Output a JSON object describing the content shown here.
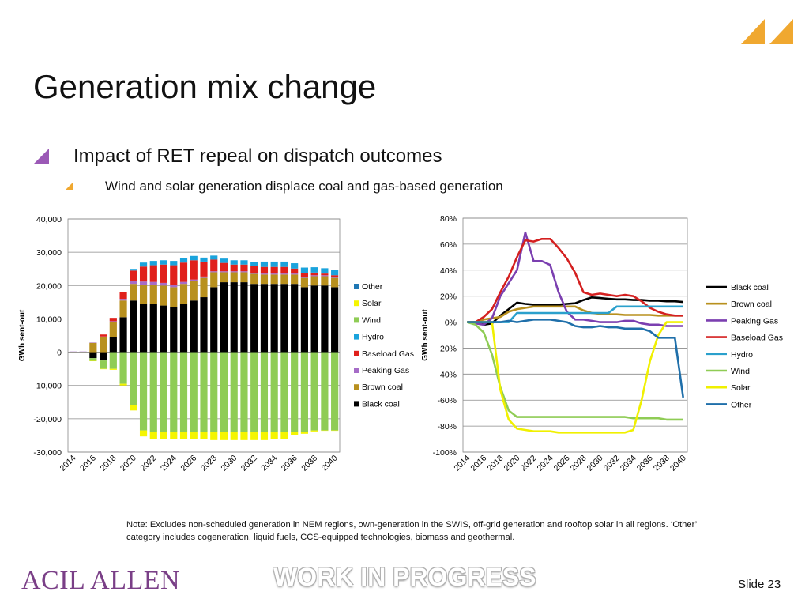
{
  "slide": {
    "title": "Generation mix change",
    "bullet1": "Impact of RET repeal on dispatch outcomes",
    "bullet2": "Wind and solar generation displace coal and gas-based generation",
    "note": "Note: Excludes non-scheduled generation in NEM regions, own-generation in the SWIS, off-grid generation and rooftop solar in all regions. ‘Other’ category includes cogeneration, liquid fuels, CCS-equipped technologies, biomass and geothermal.",
    "brand": "ACIL ALLEN",
    "watermark": "WORK IN PROGRESS",
    "slide_number": "Slide 23",
    "accent_purple": "#9b59b6",
    "accent_orange": "#f0a830"
  },
  "chart_data": [
    {
      "type": "bar",
      "stacked": true,
      "ylabel": "GWh sent-out",
      "ylim": [
        -30000,
        40000
      ],
      "yticks": [
        40000,
        30000,
        20000,
        10000,
        0,
        -10000,
        -20000,
        -30000
      ],
      "ytick_labels": [
        "40,000",
        "30,000",
        "20,000",
        "10,000",
        "0",
        "-10,000",
        "-20,000",
        "-30,000"
      ],
      "x_tick_labels": [
        "2014",
        "2016",
        "2018",
        "2020",
        "2022",
        "2024",
        "2026",
        "2028",
        "2030",
        "2032",
        "2034",
        "2036",
        "2038",
        "2040"
      ],
      "categories": [
        2014,
        2015,
        2016,
        2017,
        2018,
        2019,
        2020,
        2021,
        2022,
        2023,
        2024,
        2025,
        2026,
        2027,
        2028,
        2029,
        2030,
        2031,
        2032,
        2033,
        2034,
        2035,
        2036,
        2037,
        2038,
        2039,
        2040
      ],
      "legend_position": "right",
      "series": [
        {
          "name": "Other",
          "color": "#1f77b4",
          "values": [
            0,
            0,
            0,
            0,
            0,
            0,
            0,
            0,
            0,
            0,
            0,
            0,
            0,
            0,
            0,
            0,
            0,
            0,
            0,
            0,
            0,
            0,
            0,
            0,
            0,
            0,
            0
          ]
        },
        {
          "name": "Solar",
          "color": "#f5f500",
          "values": [
            0,
            0,
            -100,
            -100,
            -300,
            -500,
            -1500,
            -1800,
            -2000,
            -2000,
            -2000,
            -2000,
            -2200,
            -2200,
            -2400,
            -2400,
            -2400,
            -2400,
            -2400,
            -2400,
            -2200,
            -2200,
            -1000,
            -500,
            -300,
            -100,
            -100
          ]
        },
        {
          "name": "Wind",
          "color": "#8fcc55",
          "values": [
            -200,
            -200,
            -800,
            -2500,
            -5000,
            -9500,
            -16000,
            -23500,
            -24000,
            -24000,
            -24000,
            -24000,
            -24000,
            -24000,
            -24000,
            -24000,
            -24000,
            -24000,
            -24000,
            -24000,
            -24000,
            -24000,
            -24000,
            -24000,
            -23500,
            -23500,
            -23500
          ]
        },
        {
          "name": "Hydro",
          "color": "#1aa3dc",
          "values": [
            0,
            0,
            0,
            0,
            0,
            0,
            500,
            1200,
            1300,
            1300,
            1300,
            1300,
            1300,
            1200,
            1200,
            1300,
            1300,
            1300,
            1300,
            1600,
            1600,
            1600,
            1600,
            1600,
            1600,
            1600,
            1600
          ]
        },
        {
          "name": "Baseload Gas",
          "color": "#e0201b",
          "values": [
            0,
            0,
            0,
            600,
            1000,
            2000,
            3000,
            4500,
            5000,
            5500,
            5800,
            5800,
            5800,
            4500,
            3500,
            2500,
            2000,
            2000,
            2000,
            2000,
            2000,
            2000,
            1500,
            1200,
            800,
            500,
            500
          ]
        },
        {
          "name": "Peaking Gas",
          "color": "#a66cc7",
          "values": [
            200,
            200,
            100,
            200,
            300,
            500,
            1000,
            900,
            800,
            800,
            800,
            600,
            500,
            400,
            300,
            300,
            300,
            300,
            300,
            300,
            300,
            300,
            300,
            300,
            300,
            300,
            300
          ]
        },
        {
          "name": "Brown coal",
          "color": "#b8901e",
          "values": [
            0,
            0,
            2800,
            4500,
            4500,
            5000,
            5000,
            5800,
            5800,
            6000,
            6000,
            6000,
            5800,
            5800,
            4500,
            3000,
            3000,
            3000,
            3000,
            2800,
            2800,
            2800,
            2800,
            2800,
            2800,
            2800,
            2800
          ]
        },
        {
          "name": "Black coal",
          "color": "#000000",
          "values": [
            0,
            0,
            -1800,
            -2500,
            4500,
            10500,
            15500,
            14500,
            14500,
            14000,
            13500,
            14500,
            15500,
            16500,
            19500,
            21000,
            21000,
            21000,
            20500,
            20500,
            20500,
            20500,
            20500,
            19500,
            20000,
            20000,
            19500
          ]
        }
      ]
    },
    {
      "type": "line",
      "ylabel": "GWh sent-out",
      "ylim": [
        -100,
        80
      ],
      "yticks": [
        80,
        60,
        40,
        20,
        0,
        -20,
        -40,
        -60,
        -80,
        -100
      ],
      "ytick_labels": [
        "80%",
        "60%",
        "40%",
        "20%",
        "0%",
        "-20%",
        "-40%",
        "-60%",
        "-80%",
        "-100%"
      ],
      "x_tick_labels": [
        "2014",
        "2016",
        "2018",
        "2020",
        "2022",
        "2024",
        "2026",
        "2028",
        "2030",
        "2032",
        "2034",
        "2036",
        "2038",
        "2040"
      ],
      "x": [
        2014,
        2015,
        2016,
        2017,
        2018,
        2019,
        2020,
        2021,
        2022,
        2023,
        2024,
        2025,
        2026,
        2027,
        2028,
        2029,
        2030,
        2031,
        2032,
        2033,
        2034,
        2035,
        2036,
        2037,
        2038,
        2039,
        2040
      ],
      "legend_position": "right",
      "series": [
        {
          "name": "Black coal",
          "color": "#000000",
          "values": [
            0,
            0,
            -2,
            -1,
            5,
            10,
            15,
            14,
            13.5,
            13,
            13,
            13.5,
            14,
            14.5,
            17,
            19,
            18.5,
            18,
            17.5,
            17.5,
            17,
            17,
            16.5,
            16.5,
            16,
            16,
            15.5
          ]
        },
        {
          "name": "Brown coal",
          "color": "#b8901e",
          "values": [
            0,
            0,
            2,
            3,
            4,
            8,
            10,
            11,
            12,
            12,
            12,
            12,
            12,
            12,
            9,
            7,
            6.5,
            6,
            6,
            5.5,
            5.5,
            5.5,
            5.5,
            5,
            5,
            5,
            5
          ]
        },
        {
          "name": "Peaking Gas",
          "color": "#7b3fb0",
          "values": [
            0,
            -1,
            -2,
            3,
            20,
            30,
            40,
            69,
            47,
            47,
            44,
            23,
            8,
            2,
            2,
            1,
            0,
            0,
            0,
            1,
            1,
            -1,
            -2,
            -2,
            -3,
            -3,
            -3
          ]
        },
        {
          "name": "Baseload Gas",
          "color": "#d42020",
          "values": [
            0,
            0,
            4,
            10,
            23,
            35,
            50,
            63,
            62,
            64,
            64,
            57,
            49,
            38,
            23,
            21,
            22,
            21,
            20,
            21,
            20,
            16,
            11,
            8,
            6,
            5,
            5
          ]
        },
        {
          "name": "Hydro",
          "color": "#2aa0cc",
          "values": [
            0,
            0,
            0,
            0,
            0,
            0,
            7,
            7,
            7,
            7,
            7,
            7,
            7,
            7,
            7,
            7,
            7,
            7,
            12,
            12,
            12,
            12,
            12,
            12,
            12,
            12,
            12
          ]
        },
        {
          "name": "Wind",
          "color": "#8fcc55",
          "values": [
            0,
            -2,
            -8,
            -25,
            -50,
            -68,
            -73,
            -73,
            -73,
            -73,
            -73,
            -73,
            -73,
            -73,
            -73,
            -73,
            -73,
            -73,
            -73,
            -73,
            -74,
            -74,
            -74,
            -74,
            -75,
            -75,
            -75
          ]
        },
        {
          "name": "Solar",
          "color": "#f0f000",
          "values": [
            0,
            0,
            0,
            0,
            -52,
            -75,
            -82,
            -83,
            -84,
            -84,
            -84,
            -85,
            -85,
            -85,
            -85,
            -85,
            -85,
            -85,
            -85,
            -85,
            -83,
            -60,
            -30,
            -10,
            0,
            0,
            0
          ]
        },
        {
          "name": "Other",
          "color": "#1f6faa",
          "values": [
            0,
            0,
            0,
            0,
            0,
            1,
            0,
            1,
            2,
            2,
            2,
            1,
            0,
            -3,
            -4,
            -4,
            -3,
            -4,
            -4,
            -5,
            -5,
            -5,
            -7,
            -12,
            -12,
            -12,
            -58
          ]
        }
      ]
    }
  ]
}
